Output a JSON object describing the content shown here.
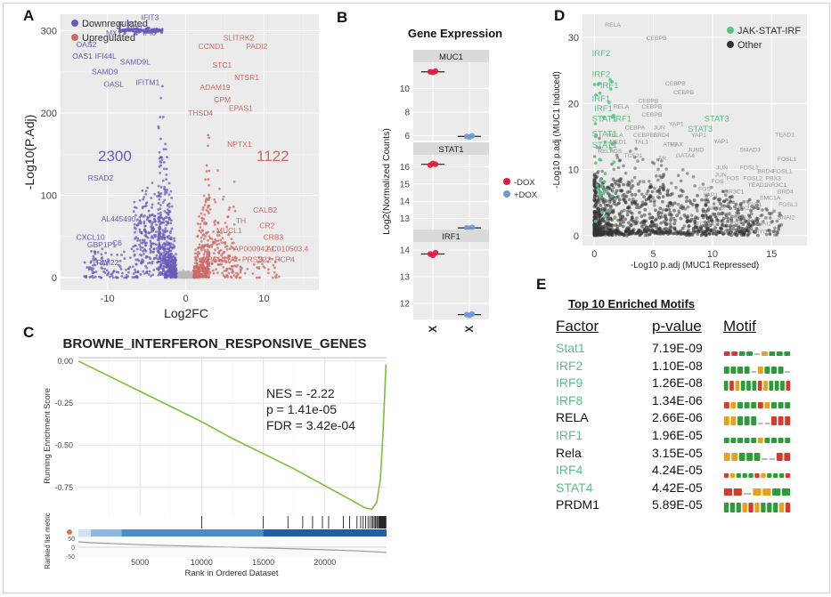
{
  "panels": {
    "a": "A",
    "b": "B",
    "c": "C",
    "d": "D",
    "e": "E"
  },
  "colors": {
    "down": "#6b5bb8",
    "up": "#cc6b66",
    "gray_pt": "#b9b9b9",
    "panel_bg": "#ebebeb",
    "grid": "#ffffff",
    "jak": "#5cbf87",
    "other": "#333333",
    "gsea_line": "#7cbf3a",
    "minus_dox": "#e31a3c",
    "plus_dox": "#6a9bd1",
    "label_gray": "#9a9a9a"
  },
  "chart_data": [
    {
      "id": "A",
      "type": "scatter",
      "xlabel": "Log2FC",
      "ylabel": "-Log10(P.Adj)",
      "xticks": [
        -10,
        0,
        10
      ],
      "yticks": [
        0,
        100,
        200,
        300
      ],
      "xlim": [
        -16,
        17
      ],
      "ylim": [
        -15,
        320
      ],
      "legend": [
        "Downregulated",
        "Upregulated"
      ],
      "legend_position": "top-left",
      "counts": {
        "down": "2300",
        "up": "1122"
      },
      "labels_down": [
        {
          "t": "IFIT3",
          "x": -5.7,
          "y": 313
        },
        {
          "t": "IFIT1",
          "x": -8.7,
          "y": 305
        },
        {
          "t": "IFIT2",
          "x": -7.1,
          "y": 300
        },
        {
          "t": "MX1",
          "x": -10.2,
          "y": 294
        },
        {
          "t": "IFI6",
          "x": -5.5,
          "y": 294
        },
        {
          "t": "OAS2",
          "x": -14.0,
          "y": 280
        },
        {
          "t": "OAS1",
          "x": -14.5,
          "y": 266
        },
        {
          "t": "IFI44L",
          "x": -11.6,
          "y": 266
        },
        {
          "t": "SAMD9L",
          "x": -8.4,
          "y": 259
        },
        {
          "t": "SAMD9",
          "x": -12.0,
          "y": 247
        },
        {
          "t": "IFITM1",
          "x": -6.4,
          "y": 234
        },
        {
          "t": "OASL",
          "x": -10.5,
          "y": 232
        },
        {
          "t": "RSAD2",
          "x": -12.5,
          "y": 118
        },
        {
          "t": "AL445490.1",
          "x": -10.8,
          "y": 68
        },
        {
          "t": "CXCL10",
          "x": -14.0,
          "y": 46
        },
        {
          "t": "GBP1P1",
          "x": -12.6,
          "y": 37
        },
        {
          "t": "C6",
          "x": -9.4,
          "y": 39
        },
        {
          "t": "TRIM22",
          "x": -12.0,
          "y": 15
        }
      ],
      "labels_up": [
        {
          "t": "SLITRK2",
          "x": 4.8,
          "y": 288
        },
        {
          "t": "CCND1",
          "x": 1.6,
          "y": 278
        },
        {
          "t": "PADI2",
          "x": 7.7,
          "y": 278
        },
        {
          "t": "STC1",
          "x": 3.4,
          "y": 255
        },
        {
          "t": "NTSR1",
          "x": 6.2,
          "y": 240
        },
        {
          "t": "ADAM19",
          "x": 1.8,
          "y": 228
        },
        {
          "t": "CPM",
          "x": 3.6,
          "y": 213
        },
        {
          "t": "EPAS1",
          "x": 5.5,
          "y": 203
        },
        {
          "t": "THSD4",
          "x": 0.3,
          "y": 197
        },
        {
          "t": "NPTX1",
          "x": 5.3,
          "y": 159
        },
        {
          "t": "CALB2",
          "x": 8.6,
          "y": 79
        },
        {
          "t": "TH",
          "x": 6.4,
          "y": 66
        },
        {
          "t": "CR2",
          "x": 9.4,
          "y": 60
        },
        {
          "t": "MUCL1",
          "x": 3.9,
          "y": 54
        },
        {
          "t": "CRB3",
          "x": 9.9,
          "y": 46
        },
        {
          "t": "AP000942.1",
          "x": 6.1,
          "y": 32
        },
        {
          "t": "AC010503.4",
          "x": 10.3,
          "y": 32
        },
        {
          "t": "BCL11A",
          "x": 2.8,
          "y": 19
        },
        {
          "t": "PRSS22",
          "x": 7.2,
          "y": 19
        },
        {
          "t": "PCP4",
          "x": 11.4,
          "y": 19
        }
      ]
    },
    {
      "id": "B",
      "type": "scatter",
      "title": "Gene Expression",
      "ylabel": "Log2(Normalized Counts)",
      "categories": [
        "-DOX",
        "+DOX"
      ],
      "legend": [
        "-DOX",
        "+DOX"
      ],
      "legend_position": "right",
      "facets": [
        {
          "name": "MUC1",
          "yticks": [
            6,
            8,
            10
          ],
          "ylim": [
            5.6,
            12.2
          ],
          "values": [
            {
              "cat": "-DOX",
              "mean": 11.4,
              "pts": [
                11.4,
                11.35,
                11.45
              ]
            },
            {
              "cat": "+DOX",
              "mean": 5.95,
              "pts": [
                5.95,
                5.9,
                6.0
              ]
            }
          ]
        },
        {
          "name": "STAT1",
          "yticks": [
            13,
            14,
            15,
            16
          ],
          "ylim": [
            12.2,
            16.7
          ],
          "values": [
            {
              "cat": "-DOX",
              "mean": 16.15,
              "pts": [
                16.1,
                16.2,
                16.15
              ]
            },
            {
              "cat": "+DOX",
              "mean": 12.45,
              "pts": [
                12.45,
                12.42,
                12.48
              ]
            }
          ]
        },
        {
          "name": "IRF1",
          "yticks": [
            12,
            13,
            14
          ],
          "ylim": [
            11.4,
            14.3
          ],
          "values": [
            {
              "cat": "-DOX",
              "mean": 13.85,
              "pts": [
                13.85,
                13.8,
                13.9
              ]
            },
            {
              "cat": "+DOX",
              "mean": 11.58,
              "pts": [
                11.58,
                11.55,
                11.6
              ]
            }
          ]
        }
      ]
    },
    {
      "id": "C",
      "type": "line",
      "title": "BROWNE_INTERFERON_RESPONSIVE_GENES",
      "xlabel": "Rank in Ordered Dataset",
      "ylabel": "Running Enrichment Score",
      "ylabel2": "Ranked list metric",
      "xticks": [
        5000,
        10000,
        15000,
        20000
      ],
      "yticks": [
        0.0,
        -0.25,
        -0.5,
        -0.75
      ],
      "ytick_labels": [
        "0.00",
        "-0.25",
        "-0.50",
        "-0.75"
      ],
      "metric_ticks": [
        "50",
        "0",
        "-50"
      ],
      "xlim": [
        0,
        25000
      ],
      "ylim": [
        -0.92,
        0.02
      ],
      "stats": {
        "nes": "NES = -2.22",
        "p": "p = 1.41e-05",
        "fdr": "FDR = 3.42e-04"
      },
      "curve": [
        [
          0,
          0
        ],
        [
          2500,
          -0.09
        ],
        [
          5000,
          -0.18
        ],
        [
          7500,
          -0.27
        ],
        [
          10000,
          -0.36
        ],
        [
          12500,
          -0.46
        ],
        [
          15000,
          -0.55
        ],
        [
          17500,
          -0.64
        ],
        [
          20000,
          -0.74
        ],
        [
          22000,
          -0.82
        ],
        [
          23200,
          -0.87
        ],
        [
          23800,
          -0.88
        ],
        [
          24200,
          -0.84
        ],
        [
          24500,
          -0.7
        ],
        [
          24700,
          -0.45
        ],
        [
          24850,
          -0.2
        ],
        [
          24950,
          -0.02
        ]
      ],
      "hits": [
        10000,
        15000,
        17000,
        18200,
        19000,
        19800,
        20300,
        21500,
        22000,
        22600,
        22900,
        23100,
        23300,
        23500,
        23650,
        23800,
        23900,
        24000,
        24100,
        24200,
        24250,
        24350,
        24400,
        24450,
        24500,
        24550,
        24600,
        24650,
        24700,
        24750,
        24800,
        24850,
        24900,
        24950
      ]
    },
    {
      "id": "D",
      "type": "scatter",
      "xlabel": "-Log10 p.adj (MUC1 Repressed)",
      "ylabel": "-Log10 p.adj (MUC1 Induced)",
      "xticks": [
        0,
        5,
        10,
        15
      ],
      "yticks": [
        0,
        10,
        20,
        30
      ],
      "xlim": [
        -1,
        18
      ],
      "ylim": [
        -1.5,
        33.5
      ],
      "legend": [
        "JAK-STAT-IRF",
        "Other"
      ],
      "legend_position": "top-right",
      "green_labels": [
        {
          "t": "IRF2",
          "x": -0.2,
          "y": 27.2
        },
        {
          "t": "IRF2",
          "x": -0.2,
          "y": 24.0
        },
        {
          "t": "IRF1",
          "x": 0.5,
          "y": 22.3
        },
        {
          "t": "IRF1",
          "x": -0.2,
          "y": 20.3
        },
        {
          "t": "IRF1",
          "x": 0.0,
          "y": 18.8
        },
        {
          "t": "STAT1",
          "x": -0.2,
          "y": 17.3
        },
        {
          "t": "IRF1",
          "x": 1.6,
          "y": 17.3
        },
        {
          "t": "STAT1",
          "x": -0.2,
          "y": 15.0
        },
        {
          "t": "STAT1",
          "x": -0.2,
          "y": 13.3
        },
        {
          "t": "STAT3",
          "x": 9.3,
          "y": 17.3
        },
        {
          "t": "STAT3",
          "x": 7.9,
          "y": 15.7
        }
      ],
      "gray_labels": [
        {
          "t": "RELA",
          "x": 0.9,
          "y": 31.6
        },
        {
          "t": "CEBPB",
          "x": 4.4,
          "y": 29.6
        },
        {
          "t": "CEBPB",
          "x": 6.0,
          "y": 22.7
        },
        {
          "t": "CEBPB",
          "x": 6.7,
          "y": 21.4
        },
        {
          "t": "CEBPB",
          "x": 3.7,
          "y": 20.1
        },
        {
          "t": "CEBPB",
          "x": 4.0,
          "y": 19.2
        },
        {
          "t": "RELA",
          "x": 1.6,
          "y": 19.2
        },
        {
          "t": "CEBPB",
          "x": 4.0,
          "y": 18.0
        },
        {
          "t": "YAP1",
          "x": 6.3,
          "y": 16.6
        },
        {
          "t": "CEBPA",
          "x": 2.6,
          "y": 16.1
        },
        {
          "t": "JUN",
          "x": 5.0,
          "y": 16.1
        },
        {
          "t": "BRD4",
          "x": 5.0,
          "y": 14.9
        },
        {
          "t": "YAP1",
          "x": 8.2,
          "y": 14.9
        },
        {
          "t": "RELA",
          "x": 1.1,
          "y": 14.9
        },
        {
          "t": "CEBPB",
          "x": 3.3,
          "y": 14.9
        },
        {
          "t": "MED1",
          "x": 1.3,
          "y": 13.9
        },
        {
          "t": "TAL1",
          "x": 3.4,
          "y": 13.9
        },
        {
          "t": "ATF3",
          "x": 5.8,
          "y": 13.5
        },
        {
          "t": "MAX",
          "x": 6.4,
          "y": 13.5
        },
        {
          "t": "YAP1",
          "x": 10.1,
          "y": 14.0
        },
        {
          "t": "TEAD1",
          "x": 15.3,
          "y": 15.0
        },
        {
          "t": "RELA",
          "x": 0.3,
          "y": 12.5
        },
        {
          "t": "FOS",
          "x": 1.3,
          "y": 12.5
        },
        {
          "t": "TCF21",
          "x": 2.5,
          "y": 11.8
        },
        {
          "t": "JUND",
          "x": 7.9,
          "y": 12.7
        },
        {
          "t": "SMAD3",
          "x": 12.3,
          "y": 12.7
        },
        {
          "t": "GATA4",
          "x": 6.9,
          "y": 11.8
        },
        {
          "t": "FOSL1",
          "x": 15.5,
          "y": 11.3
        },
        {
          "t": "AR",
          "x": 5.4,
          "y": 11.4
        },
        {
          "t": "JUN",
          "x": 10.3,
          "y": 10.0
        },
        {
          "t": "FOSL2",
          "x": 12.3,
          "y": 10.0
        },
        {
          "t": "BRD4",
          "x": 13.8,
          "y": 9.5
        },
        {
          "t": "FOSL1",
          "x": 15.1,
          "y": 9.5
        },
        {
          "t": "JUN",
          "x": 10.2,
          "y": 8.9
        },
        {
          "t": "FOS",
          "x": 11.2,
          "y": 8.4
        },
        {
          "t": "FOSL2",
          "x": 12.6,
          "y": 8.4
        },
        {
          "t": "PBX3",
          "x": 14.5,
          "y": 8.4
        },
        {
          "t": "FOS",
          "x": 9.9,
          "y": 7.9
        },
        {
          "t": "TEAD1",
          "x": 13.0,
          "y": 7.4
        },
        {
          "t": "NR3C1",
          "x": 14.6,
          "y": 7.4
        },
        {
          "t": "FOS",
          "x": 8.8,
          "y": 6.8
        },
        {
          "t": "NR3C1",
          "x": 11.0,
          "y": 6.4
        },
        {
          "t": "BRD4",
          "x": 15.5,
          "y": 6.4
        },
        {
          "t": "YAP1",
          "x": 9.2,
          "y": 5.9
        },
        {
          "t": "SMC1A",
          "x": 14.0,
          "y": 5.4
        },
        {
          "t": "FOSL2",
          "x": 15.6,
          "y": 4.4
        },
        {
          "t": "YAP1",
          "x": 12.9,
          "y": 4.4
        },
        {
          "t": "SNAI2",
          "x": 9.6,
          "y": 3.9
        },
        {
          "t": "NKX2-1",
          "x": 11.8,
          "y": 3.9
        },
        {
          "t": "MAX",
          "x": 10.4,
          "y": 3.0
        },
        {
          "t": "ATF3",
          "x": 11.6,
          "y": 2.5
        },
        {
          "t": "SNAI2",
          "x": 15.5,
          "y": 2.5
        },
        {
          "t": "TCF7L2",
          "x": 8.6,
          "y": 1.5
        },
        {
          "t": "TCF7L1",
          "x": 10.8,
          "y": 1.5
        },
        {
          "t": "SNAI2",
          "x": 13.5,
          "y": 1.5
        },
        {
          "t": "MYC",
          "x": 10.7,
          "y": 0.3
        },
        {
          "t": "MYC",
          "x": 13.5,
          "y": 0.3
        }
      ]
    },
    {
      "id": "E",
      "type": "table",
      "title": "Top 10 Enriched Motifs",
      "columns": [
        "Factor",
        "p-value",
        "Motif"
      ],
      "rows": [
        {
          "factor": "Stat1",
          "p": "7.19E-09",
          "green": true,
          "motif": "ttAA_GAAA"
        },
        {
          "factor": "IRF2",
          "p": "1.10E-08",
          "green": true,
          "motif": "AAAA_GAAA_"
        },
        {
          "factor": "IRF9",
          "p": "1.26E-08",
          "green": true,
          "motif": "ATGAAATGAAAT"
        },
        {
          "factor": "IRF8",
          "p": "1.34E-06",
          "green": true,
          "motif": "TGAAATGAAA"
        },
        {
          "factor": "RELA",
          "p": "2.66E-06",
          "green": false,
          "motif": "GGAAA__TTT"
        },
        {
          "factor": "IRF1",
          "p": "1.96E-05",
          "green": true,
          "motif": "AAAAAGAAAA"
        },
        {
          "factor": "Rela",
          "p": "3.15E-05",
          "green": false,
          "motif": "GGAAA__TT"
        },
        {
          "factor": "IRF4",
          "p": "4.24E-05",
          "green": true,
          "motif": "TGAAATGAAAT"
        },
        {
          "factor": "STAT4",
          "p": "4.42E-05",
          "green": true,
          "motif": "TT_GGAA"
        },
        {
          "factor": "PRDM1",
          "p": "5.89E-05",
          "green": false,
          "motif": "AAAGTGAAAGT"
        }
      ]
    }
  ]
}
